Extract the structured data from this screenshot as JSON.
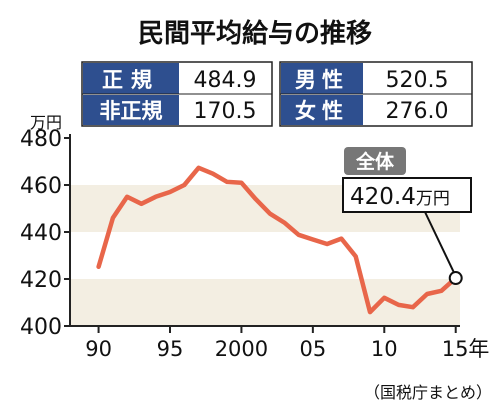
{
  "chart_data": {
    "type": "line",
    "title": "民間平均給与の推移",
    "unit_label": "万円",
    "source": "（国税庁まとめ）",
    "x_tick_labels": [
      "90",
      "95",
      "2000",
      "05",
      "10",
      "15年"
    ],
    "x_ticks": [
      1990,
      1995,
      2000,
      2005,
      2010,
      2015
    ],
    "y_ticks": [
      400,
      420,
      440,
      460,
      480
    ],
    "ylim": [
      400,
      480
    ],
    "xlim": [
      1988,
      2016
    ],
    "x": [
      1990,
      1991,
      1992,
      1993,
      1994,
      1995,
      1996,
      1997,
      1998,
      1999,
      2000,
      2001,
      2002,
      2003,
      2004,
      2005,
      2006,
      2007,
      2008,
      2009,
      2010,
      2011,
      2012,
      2013,
      2014,
      2015
    ],
    "series": [
      {
        "name": "全体",
        "values": [
          425.2,
          446.0,
          455.0,
          452.0,
          455.0,
          457.0,
          460.0,
          467.3,
          464.8,
          461.3,
          461.0,
          454.0,
          447.8,
          444.0,
          438.8,
          436.8,
          434.9,
          437.2,
          429.6,
          405.9,
          412.0,
          409.0,
          408.0,
          413.6,
          415.0,
          420.4
        ]
      }
    ],
    "callout": {
      "label": "全体",
      "value_text": "420.4",
      "unit": "万円"
    },
    "summary_left": [
      {
        "label": "正規",
        "value": "484.9"
      },
      {
        "label": "非正規",
        "value": "170.5"
      }
    ],
    "summary_right": [
      {
        "label": "男性",
        "value": "520.5"
      },
      {
        "label": "女性",
        "value": "276.0"
      }
    ],
    "colors": {
      "line": "#e8664a",
      "band": "#f3eee2",
      "box_dark": "#2e4f8f",
      "badge": "#777777",
      "axis": "#222222"
    },
    "grid": false,
    "bands": [
      [
        440,
        460
      ],
      [
        400,
        420
      ]
    ]
  }
}
